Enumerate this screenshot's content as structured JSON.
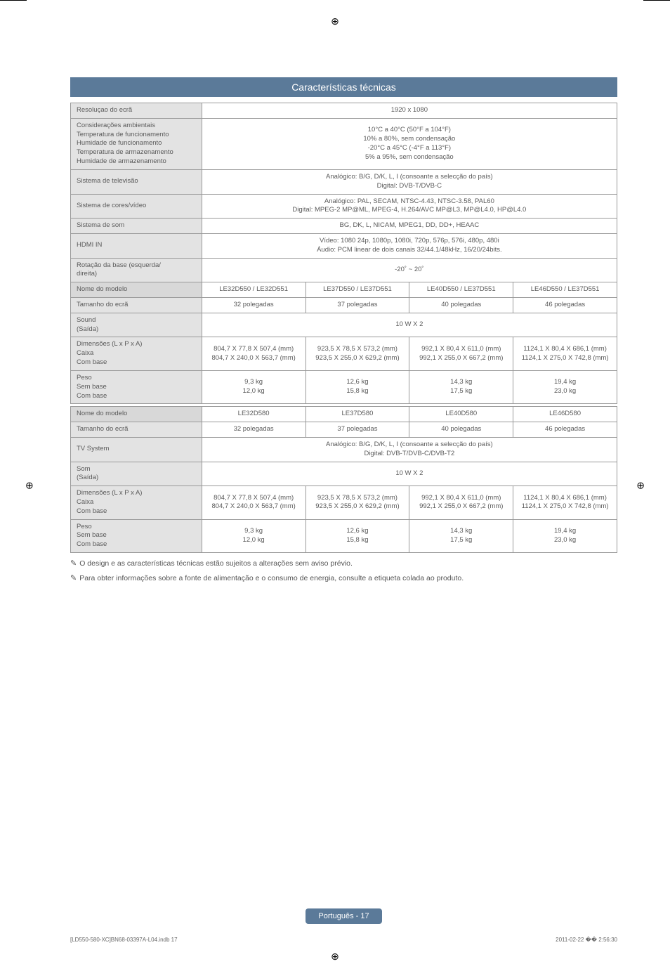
{
  "title": "Características técnicas",
  "rows_a": [
    {
      "label": "Resoluçao do ecrã",
      "val": "1920 x 1080"
    },
    {
      "label": "Considerações ambientais\nTemperatura de funcionamento\nHumidade de funcionamento\nTemperatura de armazenamento\nHumidade de armazenamento",
      "val": "10°C a 40°C (50°F a 104°F)\n10% a 80%, sem condensação\n-20°C a 45°C (-4°F a 113°F)\n5% a 95%, sem condensação"
    },
    {
      "label": "Sistema de televisão",
      "val": "Analógico: B/G, D/K, L, I (consoante a selecção do país)\nDigital: DVB-T/DVB-C"
    },
    {
      "label": "Sistema de cores/vídeo",
      "val": "Analógico: PAL, SECAM, NTSC-4.43, NTSC-3.58, PAL60\nDigital: MPEG-2 MP@ML, MPEG-4, H.264/AVC MP@L3, MP@L4.0, HP@L4.0"
    },
    {
      "label": "Sistema de som",
      "val": "BG, DK, L, NICAM, MPEG1, DD, DD+, HEAAC"
    },
    {
      "label": "HDMI IN",
      "val": "Vídeo: 1080 24p, 1080p, 1080i, 720p, 576p, 576i, 480p, 480i\nÁudio: PCM linear de dois canais 32/44.1/48kHz, 16/20/24bits."
    },
    {
      "label": "Rotação da base (esquerda/\ndireita)",
      "val": "-20˚ ~ 20˚"
    }
  ],
  "model_row_a": {
    "label": "Nome do modelo",
    "c": [
      "LE32D550 / LE32D551",
      "LE37D550 / LE37D551",
      "LE40D550 / LE37D551",
      "LE46D550 / LE37D551"
    ]
  },
  "size_row_a": {
    "label": "Tamanho do ecrã",
    "c": [
      "32 polegadas",
      "37 polegadas",
      "40 polegadas",
      "46 polegadas"
    ]
  },
  "sound_a": {
    "label": "Sound\n(Saída)",
    "val": "10 W X 2"
  },
  "dim_a": {
    "label": "Dimensões (L x P x A)\nCaixa\nCom base",
    "c": [
      "804,7 X 77,8 X 507,4 (mm)\n804,7 X 240,0 X 563,7 (mm)",
      "923,5 X 78,5 X 573,2 (mm)\n923,5 X 255,0 X 629,2 (mm)",
      "992,1 X 80,4 X 611,0 (mm)\n992,1 X 255,0 X 667,2 (mm)",
      "1124,1 X 80,4 X 686,1 (mm)\n1124,1 X 275,0 X 742,8 (mm)"
    ]
  },
  "peso_a": {
    "label": "Peso\nSem base\nCom base",
    "c": [
      "9,3 kg\n12,0 kg",
      "12,6 kg\n15,8 kg",
      "14,3 kg\n17,5 kg",
      "19,4 kg\n23,0 kg"
    ]
  },
  "model_row_b": {
    "label": "Nome do modelo",
    "c": [
      "LE32D580",
      "LE37D580",
      "LE40D580",
      "LE46D580"
    ]
  },
  "size_row_b": {
    "label": "Tamanho do ecrã",
    "c": [
      "32 polegadas",
      "37 polegadas",
      "40 polegadas",
      "46 polegadas"
    ]
  },
  "tvsys": {
    "label": "TV System",
    "val": "Analógico: B/G, D/K, L, I (consoante a selecção do país)\nDigital: DVB-T/DVB-C/DVB-T2"
  },
  "som_b": {
    "label": "Som\n(Saída)",
    "val": "10 W X 2"
  },
  "dim_b": {
    "label": "Dimensões (L x P x A)\nCaixa\nCom base",
    "c": [
      "804,7 X 77,8 X 507,4 (mm)\n804,7 X 240,0 X 563,7 (mm)",
      "923,5 X 78,5 X 573,2 (mm)\n923,5 X 255,0 X 629,2 (mm)",
      "992,1 X 80,4 X 611,0 (mm)\n992,1 X 255,0 X 667,2 (mm)",
      "1124,1 X 80,4 X 686,1 (mm)\n1124,1 X 275,0 X 742,8 (mm)"
    ]
  },
  "peso_b": {
    "label": "Peso\nSem base\nCom base",
    "c": [
      "9,3 kg\n12,0 kg",
      "12,6 kg\n15,8 kg",
      "14,3 kg\n17,5 kg",
      "19,4 kg\n23,0 kg"
    ]
  },
  "note1": "O design e as características técnicas estão sujeitos a alterações sem aviso prévio.",
  "note2": "Para obter informações sobre a fonte de alimentação e o consumo de energia, consulte a etiqueta colada ao produto.",
  "page_label": "Português - 17",
  "footer_left": "[LD550-580-XC]BN68-03397A-L04.indb   17",
  "footer_right": "2011-02-22   �� 2:56:30",
  "colors": {
    "header": "#5b7a99",
    "label_bg": "#e3e3e3",
    "label_bg2": "#d8d8d8",
    "text": "#5a5a5a"
  }
}
